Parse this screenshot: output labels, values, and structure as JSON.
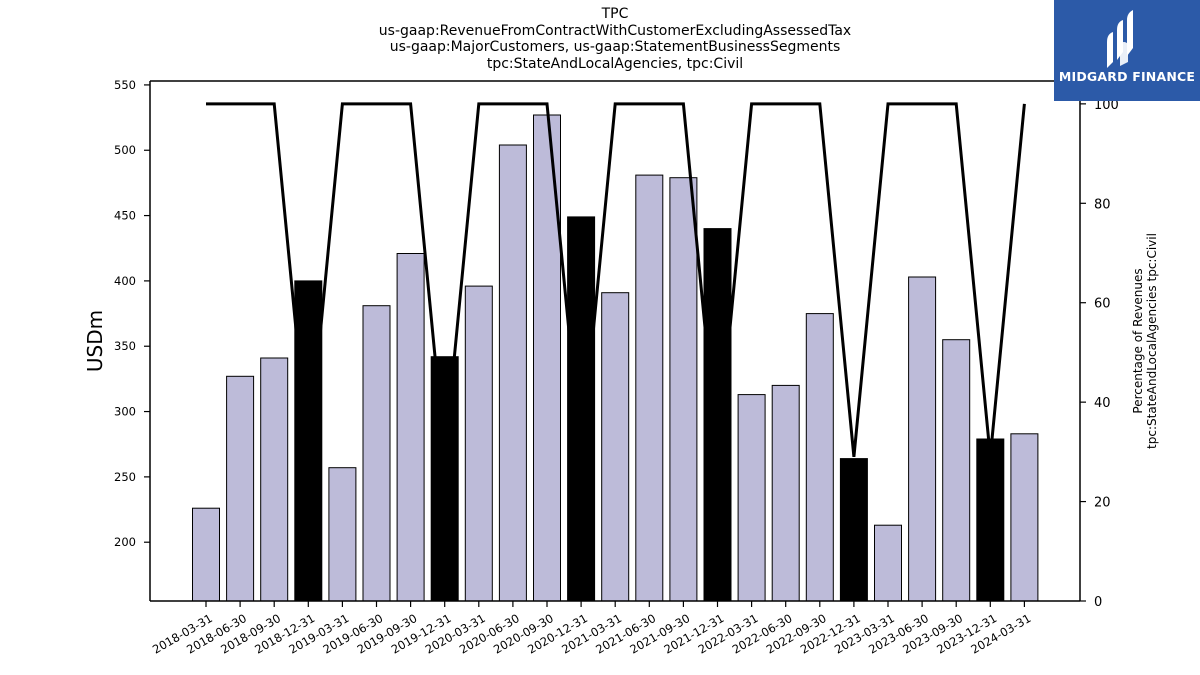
{
  "title_lines": [
    "TPC",
    "us-gaap:RevenueFromContractWithCustomerExcludingAssessedTax",
    "us-gaap:MajorCustomers, us-gaap:StatementBusinessSegments",
    "tpc:StateAndLocalAgencies, tpc:Civil"
  ],
  "logo": {
    "text": "MIDGARD FINANCE",
    "color": "#2c5aa8",
    "icon": "midgard-logo-icon"
  },
  "chart_data": {
    "type": "bar",
    "categories": [
      "2018-03-31",
      "2018-06-30",
      "2018-09-30",
      "2018-12-31",
      "2019-03-31",
      "2019-06-30",
      "2019-09-30",
      "2019-12-31",
      "2020-03-31",
      "2020-06-30",
      "2020-09-30",
      "2020-12-31",
      "2021-03-31",
      "2021-06-30",
      "2021-09-30",
      "2021-12-31",
      "2022-03-31",
      "2022-06-30",
      "2022-09-30",
      "2022-12-31",
      "2023-03-31",
      "2023-06-30",
      "2023-09-30",
      "2023-12-31",
      "2024-03-31"
    ],
    "series": [
      {
        "values": [
          226,
          327,
          341,
          400,
          257,
          381,
          421,
          342,
          396,
          504,
          527,
          449,
          391,
          481,
          479,
          440,
          313,
          320,
          375,
          264,
          213,
          403,
          355,
          279,
          283
        ],
        "highlight": [
          false,
          false,
          false,
          true,
          false,
          false,
          false,
          true,
          false,
          false,
          false,
          true,
          false,
          false,
          false,
          true,
          false,
          false,
          false,
          true,
          false,
          false,
          false,
          true,
          false
        ],
        "color": "#bdbbd9",
        "highlight_color": "#000000",
        "axis": "left"
      },
      {
        "type": "line",
        "values": [
          100,
          100,
          100,
          29,
          100,
          100,
          100,
          29,
          100,
          100,
          100,
          29,
          100,
          100,
          100,
          29,
          100,
          100,
          100,
          29,
          100,
          100,
          100,
          29,
          100
        ],
        "color": "#000000",
        "axis": "right"
      }
    ],
    "ylabel": "USDm",
    "ylabel_right": [
      "Percentage of Revenues",
      "tpc:StateAndLocalAgencies tpc:Civil"
    ],
    "ylim": [
      155,
      553
    ],
    "yticks": [
      200,
      250,
      300,
      350,
      400,
      450,
      500,
      550
    ],
    "ylim_right": [
      0,
      104.6
    ],
    "yticks_right": [
      0,
      20,
      40,
      60,
      80,
      100
    ],
    "grid": false,
    "legend": "none"
  }
}
